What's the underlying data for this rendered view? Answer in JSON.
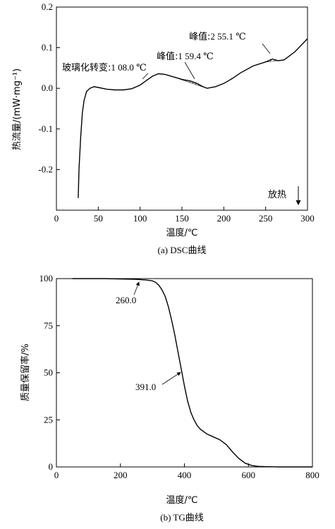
{
  "chart_data": [
    {
      "type": "line",
      "ylabel": "热流量/(mW·mg⁻¹)",
      "xlabel": "温度/℃",
      "caption": "(a) DSC曲线",
      "xlim": [
        0,
        300
      ],
      "ylim": [
        -0.3,
        0.2
      ],
      "xticks": [
        0,
        50,
        100,
        150,
        200,
        250,
        300
      ],
      "yticks": [
        0.2,
        0.1,
        0.0,
        -0.1,
        -0.2
      ],
      "ytick_labels": [
        "0.2",
        "0.1",
        "0.0",
        "-0.1",
        "-0.2"
      ],
      "series": [
        {
          "x": [
            26,
            27,
            29,
            31,
            33,
            36,
            40,
            45,
            50,
            60,
            70,
            80,
            90,
            100,
            108,
            115,
            122,
            130,
            140,
            150,
            160,
            168,
            175,
            180,
            190,
            200,
            210,
            220,
            235,
            250,
            258,
            265,
            272,
            285,
            300
          ],
          "y": [
            -0.27,
            -0.2,
            -0.12,
            -0.06,
            -0.03,
            -0.008,
            0.0,
            0.004,
            0.002,
            -0.002,
            -0.004,
            -0.004,
            -0.001,
            0.008,
            0.02,
            0.03,
            0.036,
            0.034,
            0.028,
            0.022,
            0.018,
            0.012,
            0.004,
            0.0,
            0.004,
            0.012,
            0.024,
            0.038,
            0.055,
            0.065,
            0.072,
            0.068,
            0.07,
            0.09,
            0.122
          ]
        }
      ],
      "annotations": {
        "glass": {
          "label": "玻璃化转变:",
          "value": "1 08.0 ℃"
        },
        "peak1": {
          "label": "峰值:",
          "value": "1 59.4 ℃"
        },
        "peak2": {
          "label": "峰值:",
          "value": "2 55.1 ℃"
        },
        "exo": "放热"
      }
    },
    {
      "type": "line",
      "ylabel": "质量保留率/%",
      "xlabel": "温度/℃",
      "caption": "(b) TG曲线",
      "xlim": [
        0,
        800
      ],
      "ylim": [
        0,
        100
      ],
      "xticks": [
        0,
        200,
        400,
        600,
        800
      ],
      "yticks": [
        0,
        25,
        50,
        75,
        100
      ],
      "series": [
        {
          "x": [
            50,
            100,
            150,
            200,
            250,
            280,
            300,
            310,
            320,
            330,
            340,
            350,
            360,
            370,
            380,
            390,
            400,
            410,
            420,
            430,
            440,
            450,
            470,
            490,
            510,
            530,
            550,
            570,
            590,
            610,
            630,
            660,
            700,
            750,
            800
          ],
          "y": [
            100,
            100,
            100,
            99.8,
            99.6,
            99.3,
            98.8,
            98,
            96.5,
            94,
            90.5,
            85,
            78,
            70,
            61,
            52,
            43,
            35,
            29,
            25,
            22,
            20,
            17.5,
            16,
            14.5,
            12,
            8,
            4.5,
            2,
            0.8,
            0.3,
            0.1,
            0,
            0,
            0
          ]
        }
      ],
      "annotations": {
        "onset": {
          "value": "260.0"
        },
        "mid": {
          "value": "391.0"
        }
      }
    }
  ]
}
